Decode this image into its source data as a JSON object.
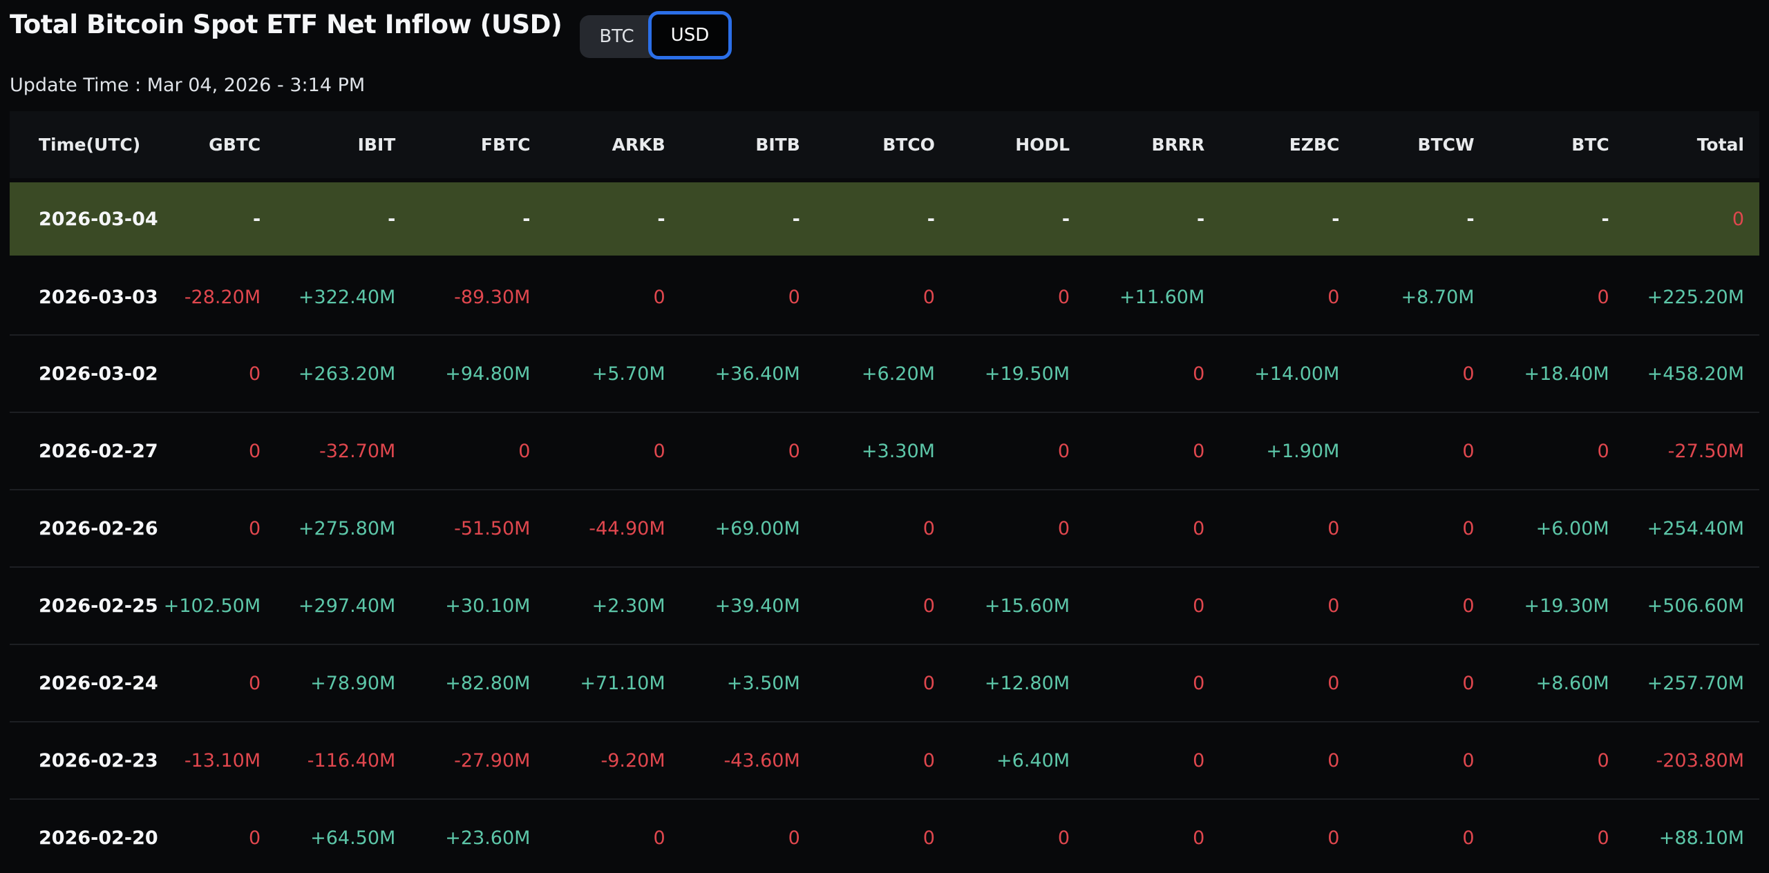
{
  "header": {
    "title": "Total Bitcoin Spot ETF Net Inflow (USD)",
    "toggle": {
      "options": [
        "BTC",
        "USD"
      ],
      "selected": "USD"
    },
    "update_time": "Update Time : Mar 04, 2026 - 3:14 PM"
  },
  "colors": {
    "positive": "#5dc7a9",
    "negative": "#e0474e",
    "highlight_row_bg": "#3a4a25",
    "accent_blue": "#2b6fe8",
    "background": "#08090b"
  },
  "chart_data": {
    "type": "table",
    "title": "Total Bitcoin Spot ETF Net Inflow (USD)",
    "columns": [
      "Time(UTC)",
      "GBTC",
      "IBIT",
      "FBTC",
      "ARKB",
      "BITB",
      "BTCO",
      "HODL",
      "BRRR",
      "EZBC",
      "BTCW",
      "BTC",
      "Total"
    ],
    "rows": [
      {
        "date": "2026-03-04",
        "highlighted": true,
        "values": [
          "-",
          "-",
          "-",
          "-",
          "-",
          "-",
          "-",
          "-",
          "-",
          "-",
          "-",
          "0"
        ]
      },
      {
        "date": "2026-03-03",
        "highlighted": false,
        "values": [
          "-28.20M",
          "+322.40M",
          "-89.30M",
          "0",
          "0",
          "0",
          "0",
          "+11.60M",
          "0",
          "+8.70M",
          "0",
          "+225.20M"
        ]
      },
      {
        "date": "2026-03-02",
        "highlighted": false,
        "values": [
          "0",
          "+263.20M",
          "+94.80M",
          "+5.70M",
          "+36.40M",
          "+6.20M",
          "+19.50M",
          "0",
          "+14.00M",
          "0",
          "+18.40M",
          "+458.20M"
        ]
      },
      {
        "date": "2026-02-27",
        "highlighted": false,
        "values": [
          "0",
          "-32.70M",
          "0",
          "0",
          "0",
          "+3.30M",
          "0",
          "0",
          "+1.90M",
          "0",
          "0",
          "-27.50M"
        ]
      },
      {
        "date": "2026-02-26",
        "highlighted": false,
        "values": [
          "0",
          "+275.80M",
          "-51.50M",
          "-44.90M",
          "+69.00M",
          "0",
          "0",
          "0",
          "0",
          "0",
          "+6.00M",
          "+254.40M"
        ]
      },
      {
        "date": "2026-02-25",
        "highlighted": false,
        "values": [
          "+102.50M",
          "+297.40M",
          "+30.10M",
          "+2.30M",
          "+39.40M",
          "0",
          "+15.60M",
          "0",
          "0",
          "0",
          "+19.30M",
          "+506.60M"
        ]
      },
      {
        "date": "2026-02-24",
        "highlighted": false,
        "values": [
          "0",
          "+78.90M",
          "+82.80M",
          "+71.10M",
          "+3.50M",
          "0",
          "+12.80M",
          "0",
          "0",
          "0",
          "+8.60M",
          "+257.70M"
        ]
      },
      {
        "date": "2026-02-23",
        "highlighted": false,
        "values": [
          "-13.10M",
          "-116.40M",
          "-27.90M",
          "-9.20M",
          "-43.60M",
          "0",
          "+6.40M",
          "0",
          "0",
          "0",
          "0",
          "-203.80M"
        ]
      },
      {
        "date": "2026-02-20",
        "highlighted": false,
        "values": [
          "0",
          "+64.50M",
          "+23.60M",
          "0",
          "0",
          "0",
          "0",
          "0",
          "0",
          "0",
          "0",
          "+88.10M"
        ]
      }
    ]
  }
}
